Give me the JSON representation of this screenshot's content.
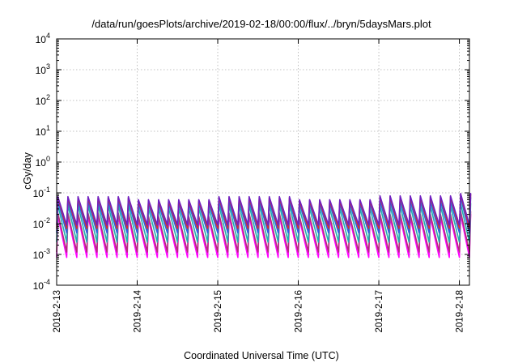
{
  "chart_data": {
    "type": "line",
    "title": "/data/run/goesPlots/archive/2019-02-18/00:00/flux/../bryn/5daysMars.plot",
    "xlabel": "Coordinated Universal Time (UTC)",
    "ylabel": "cGy/day",
    "yscale": "log",
    "ylim": [
      0.0001,
      10000
    ],
    "xlim": [
      "2019-02-13 00:00",
      "2019-02-18 03:00"
    ],
    "grid": true,
    "y_ticks": [
      {
        "base": "10",
        "exp": "-4"
      },
      {
        "base": "10",
        "exp": "-3"
      },
      {
        "base": "10",
        "exp": "-2"
      },
      {
        "base": "10",
        "exp": "-1"
      },
      {
        "base": "10",
        "exp": "0"
      },
      {
        "base": "10",
        "exp": "1"
      },
      {
        "base": "10",
        "exp": "2"
      },
      {
        "base": "10",
        "exp": "3"
      },
      {
        "base": "10",
        "exp": "4"
      }
    ],
    "x_ticks": [
      "2019-2-13",
      "2019-2-14",
      "2019-2-15",
      "2019-2-16",
      "2019-2-17",
      "2019-2-18"
    ],
    "cycle_hours": 3,
    "series": [
      {
        "color": "#ff00ff",
        "peak": [
          0.018,
          0.014,
          0.018,
          0.014,
          0.016,
          0.02
        ],
        "trough": 0.0008
      },
      {
        "color": "#b0307a",
        "peak": [
          0.022,
          0.017,
          0.022,
          0.017,
          0.02,
          0.025
        ],
        "trough": 0.0012
      },
      {
        "color": "#20b0b0",
        "peak": [
          0.04,
          0.032,
          0.04,
          0.032,
          0.038,
          0.045
        ],
        "trough": 0.0025
      },
      {
        "color": "#3060e0",
        "peak": [
          0.055,
          0.045,
          0.055,
          0.045,
          0.055,
          0.07
        ],
        "trough": 0.005
      },
      {
        "color": "#d03030",
        "peak": [
          0.07,
          0.055,
          0.07,
          0.055,
          0.075,
          0.09
        ],
        "trough": 0.007
      },
      {
        "color": "#7020c0",
        "peak": [
          0.075,
          0.06,
          0.075,
          0.06,
          0.08,
          0.095
        ],
        "trough": 0.009
      }
    ]
  }
}
